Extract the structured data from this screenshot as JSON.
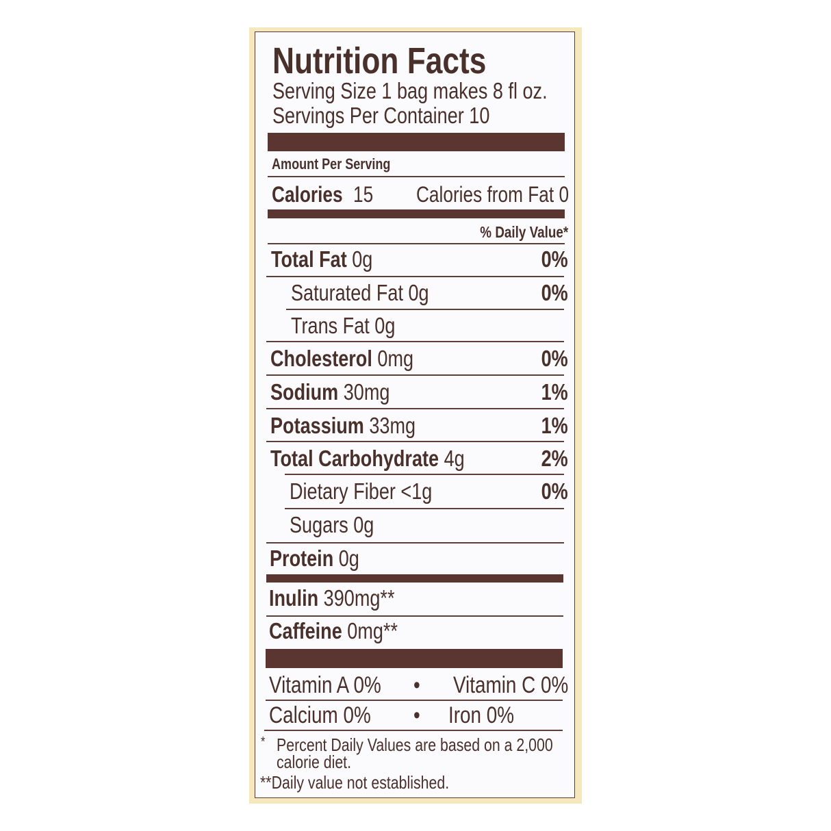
{
  "title": "Nutrition Facts",
  "serving_size": "Serving Size 1 bag makes 8 fl oz.",
  "servings_per_container": "Servings Per Container 10",
  "amount_per_serving": "Amount Per Serving",
  "calories": {
    "label": "Calories",
    "value": "15",
    "from_fat": "Calories from Fat 0"
  },
  "daily_value_header": "% Daily Value*",
  "nutrients": [
    {
      "label": "Total Fat",
      "amount": "0g",
      "dv": "0%"
    },
    {
      "label": "Saturated Fat",
      "amount": "0g",
      "dv": "0%"
    },
    {
      "label": "Trans Fat",
      "amount": "0g"
    },
    {
      "label": "Cholesterol",
      "amount": "0mg",
      "dv": "0%"
    },
    {
      "label": "Sodium",
      "amount": "30mg",
      "dv": "1%"
    },
    {
      "label": "Potassium",
      "amount": "33mg",
      "dv": "1%"
    },
    {
      "label": "Total Carbohydrate",
      "amount": "4g",
      "dv": "2%"
    },
    {
      "label": "Dietary Fiber",
      "amount": "<1g",
      "dv": "0%"
    },
    {
      "label": "Sugars",
      "amount": "0g"
    },
    {
      "label": "Protein",
      "amount": "0g"
    }
  ],
  "extras": [
    {
      "label": "Inulin",
      "amount": "390mg**"
    },
    {
      "label": "Caffeine",
      "amount": "0mg**"
    }
  ],
  "vitamins": {
    "vitamin_a": "Vitamin A 0%",
    "vitamin_c": "Vitamin C 0%",
    "calcium": "Calcium 0%",
    "iron": "Iron 0%",
    "bullet": "•"
  },
  "footnotes": {
    "star": "*",
    "dv_note_line1": "Percent Daily Values are based on a 2,000",
    "dv_note_line2": "calorie diet.",
    "double_star_note": "**Daily value not established."
  },
  "colors": {
    "text": "#4a302b",
    "bar": "#5b3630",
    "border_cream": "#f6e8bd"
  }
}
